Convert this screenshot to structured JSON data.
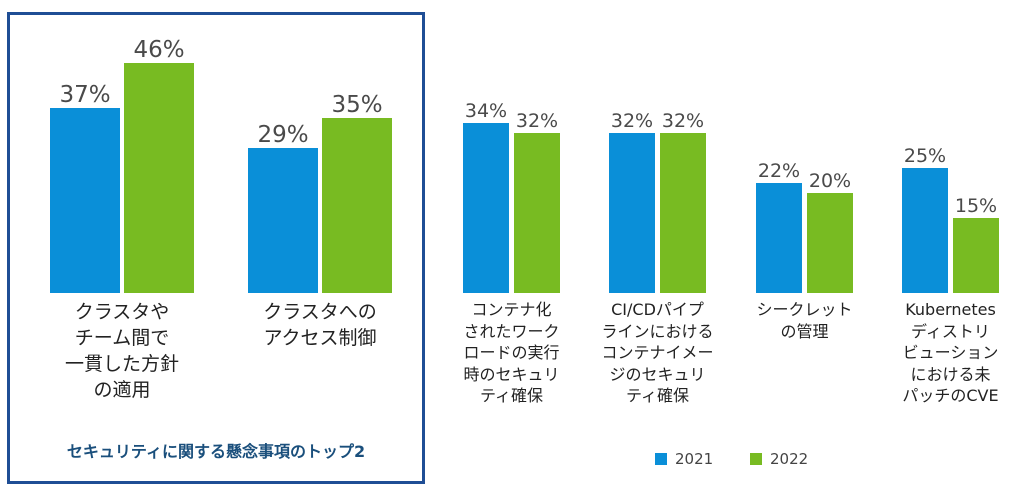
{
  "chart_data": {
    "type": "bar",
    "title": "",
    "xlabel": "",
    "ylabel": "",
    "ylim": [
      0,
      50
    ],
    "grid": false,
    "legend_position": "bottom-right",
    "categories": [
      "クラスタやチーム間で一貫した方針の適用",
      "クラスタへのアクセス制御",
      "コンテナ化されたワークロードの実行時のセキュリティ確保",
      "CI/CDパイプラインにおけるコンテナイメージのセキュリティ確保",
      "シークレットの管理",
      "Kubernetesディストリビューションにおける未パッチのCVE"
    ],
    "category_lines": [
      [
        "クラスタや",
        "チーム間で",
        "一貫した方針",
        "の適用"
      ],
      [
        "クラスタへの",
        "アクセス制御"
      ],
      [
        "コンテナ化",
        "されたワーク",
        "ロードの実行",
        "時のセキュリ",
        "ティ確保"
      ],
      [
        "CI/CDパイプ",
        "ラインにおける",
        "コンテナイメー",
        "ジのセキュリ",
        "ティ確保"
      ],
      [
        "シークレット",
        "の管理"
      ],
      [
        "Kubernetes",
        "ディストリ",
        "ビューション",
        "における未",
        "パッチのCVE"
      ]
    ],
    "series": [
      {
        "name": "2021",
        "color": "#0a8fd8",
        "values": [
          37,
          29,
          34,
          32,
          22,
          25
        ]
      },
      {
        "name": "2022",
        "color": "#78bb22",
        "values": [
          46,
          35,
          32,
          32,
          20,
          15
        ]
      }
    ],
    "value_suffix": "%",
    "highlight_box_title": "セキュリティに関する懸念事項のトップ2",
    "highlight_box_color": "#1f4e95"
  }
}
